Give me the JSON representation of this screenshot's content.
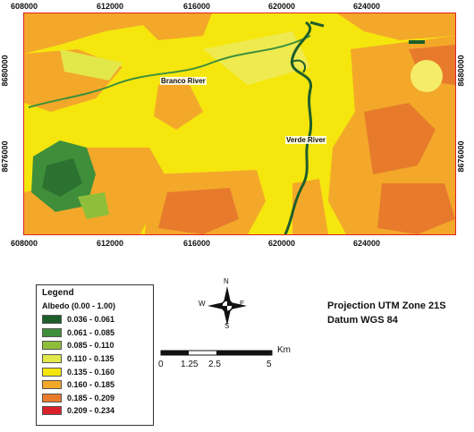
{
  "axes": {
    "x_ticks": [
      "608000",
      "612000",
      "616000",
      "620000",
      "624000"
    ],
    "y_ticks": [
      "8680000",
      "8676000"
    ]
  },
  "rivers": {
    "branco": "Branco River",
    "verde": "Verde River"
  },
  "legend": {
    "title": "Legend",
    "subtitle": "Albedo (0.00 - 1.00)",
    "classes": [
      {
        "range": "0.036 - 0.061",
        "color": "#1e5e2a"
      },
      {
        "range": "0.061 - 0.085",
        "color": "#3f8f3a"
      },
      {
        "range": "0.085 - 0.110",
        "color": "#8fbf3a"
      },
      {
        "range": "0.110 - 0.135",
        "color": "#e3e84a"
      },
      {
        "range": "0.135 - 0.160",
        "color": "#f5e60e"
      },
      {
        "range": "0.160 - 0.185",
        "color": "#f3a82a"
      },
      {
        "range": "0.185 - 0.209",
        "color": "#e87a2c"
      },
      {
        "range": "0.209 - 0.234",
        "color": "#d8202a"
      }
    ]
  },
  "projection": {
    "line1": "Projection UTM Zone 21S",
    "line2": "Datum WGS 84"
  },
  "north_arrow": {
    "n": "N",
    "s": "S",
    "e": "E",
    "w": "W"
  },
  "scale_bar": {
    "labels": [
      "0",
      "1.25",
      "2.5",
      "5"
    ],
    "unit": "Km"
  }
}
